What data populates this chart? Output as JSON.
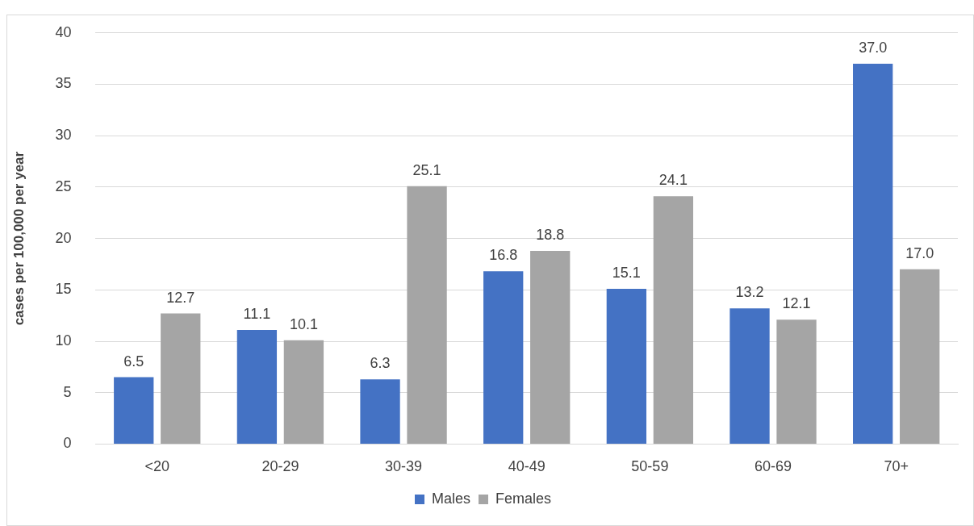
{
  "chart_data": {
    "type": "bar",
    "ylabel": "cases per 100,000 per year",
    "categories": [
      "<20",
      "20-29",
      "30-39",
      "40-49",
      "50-59",
      "60-69",
      "70+"
    ],
    "series": [
      {
        "name": "Males",
        "color": "#4472c4",
        "values": [
          6.5,
          11.1,
          6.3,
          16.8,
          15.1,
          13.2,
          37.0
        ],
        "value_labels": [
          "6.5",
          "11.1",
          "6.3",
          "16.8",
          "15.1",
          "13.2",
          "37.0"
        ]
      },
      {
        "name": "Females",
        "color": "#a5a5a5",
        "values": [
          12.7,
          10.1,
          25.1,
          18.8,
          24.1,
          12.1,
          17.0
        ],
        "value_labels": [
          "12.7",
          "10.1",
          "25.1",
          "18.8",
          "24.1",
          "12.1",
          "17.0"
        ]
      }
    ],
    "ylim": [
      0,
      40
    ],
    "yticks": [
      0,
      5,
      10,
      15,
      20,
      25,
      30,
      35,
      40
    ],
    "grid": "y",
    "legend": "bottom"
  }
}
